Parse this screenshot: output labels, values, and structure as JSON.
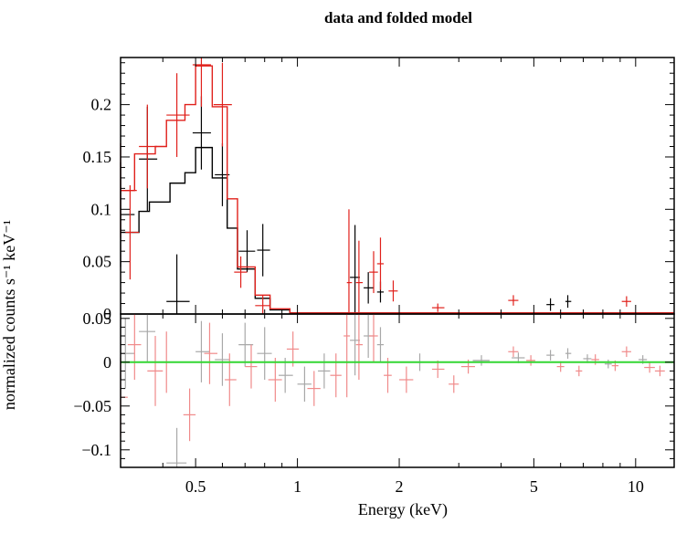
{
  "chart_data": [
    {
      "panel": "top",
      "type": "scatter",
      "title": "data and folded model",
      "xlabel": "Energy (keV)",
      "ylabel": "normalized counts s⁻¹ keV⁻¹",
      "xscale": "log",
      "xlim": [
        0.3,
        13
      ],
      "ylim": [
        0,
        0.245
      ],
      "grid": false,
      "xticks": [
        0.5,
        1,
        2,
        5,
        10
      ],
      "xtick_labels": [
        "0.5",
        "1",
        "2",
        "5",
        "10"
      ],
      "yticks": [
        0,
        0.05,
        0.1,
        0.15,
        0.2
      ],
      "ytick_labels": [
        "0",
        "0.05",
        "0.1",
        "0.15",
        "0.2"
      ],
      "series": [
        {
          "color": "#000000",
          "data": [
            {
              "x": 0.3,
              "x0": 0.3,
              "x1": 0.33,
              "y": 0.095,
              "yerr": 0.05
            },
            {
              "x": 0.36,
              "x0": 0.34,
              "x1": 0.385,
              "y": 0.148,
              "yerr": 0.05
            },
            {
              "x": 0.44,
              "x0": 0.41,
              "x1": 0.48,
              "y": 0.012,
              "yerr": 0.045
            },
            {
              "x": 0.52,
              "x0": 0.49,
              "x1": 0.555,
              "y": 0.173,
              "yerr": 0.035
            },
            {
              "x": 0.6,
              "x0": 0.57,
              "x1": 0.63,
              "y": 0.133,
              "yerr": 0.03
            },
            {
              "x": 0.71,
              "x0": 0.67,
              "x1": 0.75,
              "y": 0.06,
              "yerr": 0.02
            },
            {
              "x": 0.79,
              "x0": 0.76,
              "x1": 0.83,
              "y": 0.061,
              "yerr": 0.025
            },
            {
              "x": 1.48,
              "x0": 1.43,
              "x1": 1.53,
              "y": 0.035,
              "yerr": 0.05
            },
            {
              "x": 1.62,
              "x0": 1.57,
              "x1": 1.68,
              "y": 0.025,
              "yerr": 0.015
            },
            {
              "x": 1.76,
              "x0": 1.72,
              "x1": 1.8,
              "y": 0.021,
              "yerr": 0.01
            },
            {
              "x": 5.6,
              "x0": 5.45,
              "x1": 5.75,
              "y": 0.009,
              "yerr": 0.006
            },
            {
              "x": 6.3,
              "x0": 6.2,
              "x1": 6.45,
              "y": 0.012,
              "yerr": 0.006
            }
          ],
          "model_steps": [
            {
              "x0": 0.3,
              "x1": 0.34,
              "y": 0.078
            },
            {
              "x0": 0.34,
              "x1": 0.365,
              "y": 0.098
            },
            {
              "x0": 0.365,
              "x1": 0.42,
              "y": 0.107
            },
            {
              "x0": 0.42,
              "x1": 0.465,
              "y": 0.125
            },
            {
              "x0": 0.465,
              "x1": 0.5,
              "y": 0.135
            },
            {
              "x0": 0.5,
              "x1": 0.56,
              "y": 0.159
            },
            {
              "x0": 0.56,
              "x1": 0.62,
              "y": 0.13
            },
            {
              "x0": 0.62,
              "x1": 0.665,
              "y": 0.082
            },
            {
              "x0": 0.665,
              "x1": 0.75,
              "y": 0.043
            },
            {
              "x0": 0.75,
              "x1": 0.83,
              "y": 0.015
            },
            {
              "x0": 0.83,
              "x1": 0.95,
              "y": 0.004
            },
            {
              "x0": 0.95,
              "x1": 13,
              "y": 0.001
            }
          ]
        },
        {
          "color": "#e0201b",
          "data": [
            {
              "x": 0.3,
              "x0": 0.285,
              "x1": 0.335,
              "y": 0.118,
              "yerr": 0.045
            },
            {
              "x": 0.32,
              "x0": 0.31,
              "x1": 0.34,
              "y": 0.078,
              "yerr": 0.045
            },
            {
              "x": 0.36,
              "x0": 0.34,
              "x1": 0.385,
              "y": 0.16,
              "yerr": 0.04
            },
            {
              "x": 0.44,
              "x0": 0.41,
              "x1": 0.48,
              "y": 0.19,
              "yerr": 0.04
            },
            {
              "x": 0.52,
              "x0": 0.49,
              "x1": 0.555,
              "y": 0.238,
              "yerr": 0.04
            },
            {
              "x": 0.6,
              "x0": 0.565,
              "x1": 0.64,
              "y": 0.2,
              "yerr": 0.04
            },
            {
              "x": 0.68,
              "x0": 0.65,
              "x1": 0.71,
              "y": 0.04,
              "yerr": 0.015
            },
            {
              "x": 0.79,
              "x0": 0.75,
              "x1": 0.83,
              "y": 0.008,
              "yerr": 0.01
            },
            {
              "x": 1.42,
              "x0": 1.4,
              "x1": 1.45,
              "y": 0.03,
              "yerr": 0.07
            },
            {
              "x": 1.52,
              "x0": 1.49,
              "x1": 1.56,
              "y": 0.03,
              "yerr": 0.04
            },
            {
              "x": 1.68,
              "x0": 1.63,
              "x1": 1.73,
              "y": 0.04,
              "yerr": 0.02
            },
            {
              "x": 1.76,
              "x0": 1.72,
              "x1": 1.8,
              "y": 0.048,
              "yerr": 0.025
            },
            {
              "x": 1.92,
              "x0": 1.86,
              "x1": 1.98,
              "y": 0.022,
              "yerr": 0.01
            },
            {
              "x": 2.6,
              "x0": 2.5,
              "x1": 2.72,
              "y": 0.006,
              "yerr": 0.004
            },
            {
              "x": 4.35,
              "x0": 4.2,
              "x1": 4.5,
              "y": 0.013,
              "yerr": 0.005
            },
            {
              "x": 9.4,
              "x0": 9.1,
              "x1": 9.7,
              "y": 0.012,
              "yerr": 0.005
            }
          ],
          "model_steps": [
            {
              "x0": 0.3,
              "x1": 0.33,
              "y": 0.118
            },
            {
              "x0": 0.33,
              "x1": 0.38,
              "y": 0.153
            },
            {
              "x0": 0.38,
              "x1": 0.41,
              "y": 0.16
            },
            {
              "x0": 0.41,
              "x1": 0.465,
              "y": 0.185
            },
            {
              "x0": 0.465,
              "x1": 0.5,
              "y": 0.2
            },
            {
              "x0": 0.5,
              "x1": 0.56,
              "y": 0.237
            },
            {
              "x0": 0.56,
              "x1": 0.62,
              "y": 0.198
            },
            {
              "x0": 0.62,
              "x1": 0.665,
              "y": 0.11
            },
            {
              "x0": 0.665,
              "x1": 0.75,
              "y": 0.045
            },
            {
              "x0": 0.75,
              "x1": 0.83,
              "y": 0.018
            },
            {
              "x0": 0.83,
              "x1": 0.95,
              "y": 0.005
            },
            {
              "x0": 0.95,
              "x1": 13,
              "y": 0.001
            }
          ]
        }
      ]
    },
    {
      "panel": "bottom",
      "type": "scatter",
      "xlabel": "Energy (keV)",
      "ylabel": "normalized counts s⁻¹ keV⁻¹",
      "xscale": "log",
      "xlim": [
        0.3,
        13
      ],
      "ylim": [
        -0.12,
        0.055
      ],
      "grid": false,
      "yticks": [
        -0.1,
        -0.05,
        0,
        0.05
      ],
      "ytick_labels": [
        "−0.1",
        "−0.05",
        "0",
        "0.05"
      ],
      "reference_line": {
        "y": 0,
        "color": "#33d633"
      },
      "series": [
        {
          "color": "#a8a8a8",
          "data": [
            {
              "x": 0.31,
              "x0": 0.29,
              "x1": 0.33,
              "y": 0.01,
              "yerr": 0.04
            },
            {
              "x": 0.36,
              "x0": 0.34,
              "x1": 0.38,
              "y": 0.035,
              "yerr": 0.035
            },
            {
              "x": 0.44,
              "x0": 0.41,
              "x1": 0.47,
              "y": -0.115,
              "yerr": 0.04
            },
            {
              "x": 0.52,
              "x0": 0.5,
              "x1": 0.55,
              "y": 0.012,
              "yerr": 0.035
            },
            {
              "x": 0.6,
              "x0": 0.57,
              "x1": 0.63,
              "y": 0.003,
              "yerr": 0.03
            },
            {
              "x": 0.7,
              "x0": 0.67,
              "x1": 0.74,
              "y": 0.02,
              "yerr": 0.025
            },
            {
              "x": 0.8,
              "x0": 0.76,
              "x1": 0.84,
              "y": 0.01,
              "yerr": 0.03
            },
            {
              "x": 0.92,
              "x0": 0.88,
              "x1": 0.97,
              "y": -0.015,
              "yerr": 0.02
            },
            {
              "x": 1.05,
              "x0": 1.0,
              "x1": 1.1,
              "y": -0.025,
              "yerr": 0.02
            },
            {
              "x": 1.2,
              "x0": 1.15,
              "x1": 1.25,
              "y": -0.01,
              "yerr": 0.02
            },
            {
              "x": 1.48,
              "x0": 1.43,
              "x1": 1.53,
              "y": 0.025,
              "yerr": 0.04
            },
            {
              "x": 1.62,
              "x0": 1.57,
              "x1": 1.68,
              "y": 0.03,
              "yerr": 0.025
            },
            {
              "x": 1.76,
              "x0": 1.72,
              "x1": 1.8,
              "y": 0.02,
              "yerr": 0.02
            },
            {
              "x": 2.3,
              "x0": 2.2,
              "x1": 2.4,
              "y": 0.0,
              "yerr": 0.01
            },
            {
              "x": 3.5,
              "x0": 3.3,
              "x1": 3.7,
              "y": 0.002,
              "yerr": 0.006
            },
            {
              "x": 4.5,
              "x0": 4.3,
              "x1": 4.7,
              "y": 0.005,
              "yerr": 0.006
            },
            {
              "x": 5.6,
              "x0": 5.45,
              "x1": 5.75,
              "y": 0.008,
              "yerr": 0.006
            },
            {
              "x": 6.3,
              "x0": 6.2,
              "x1": 6.45,
              "y": 0.01,
              "yerr": 0.006
            },
            {
              "x": 7.2,
              "x0": 7.0,
              "x1": 7.4,
              "y": 0.004,
              "yerr": 0.005
            },
            {
              "x": 8.3,
              "x0": 8.1,
              "x1": 8.5,
              "y": -0.002,
              "yerr": 0.005
            },
            {
              "x": 10.5,
              "x0": 10.2,
              "x1": 10.8,
              "y": 0.003,
              "yerr": 0.005
            }
          ]
        },
        {
          "color": "#f08a8a",
          "data": [
            {
              "x": 0.3,
              "x0": 0.285,
              "x1": 0.315,
              "y": -0.04,
              "yerr": 0.045
            },
            {
              "x": 0.33,
              "x0": 0.315,
              "x1": 0.345,
              "y": 0.02,
              "yerr": 0.04
            },
            {
              "x": 0.38,
              "x0": 0.36,
              "x1": 0.4,
              "y": -0.01,
              "yerr": 0.04
            },
            {
              "x": 0.41,
              "x0": 0.39,
              "x1": 0.43,
              "y": 0.0,
              "yerr": 0.035
            },
            {
              "x": 0.48,
              "x0": 0.46,
              "x1": 0.5,
              "y": -0.06,
              "yerr": 0.03
            },
            {
              "x": 0.55,
              "x0": 0.53,
              "x1": 0.58,
              "y": 0.01,
              "yerr": 0.035
            },
            {
              "x": 0.63,
              "x0": 0.61,
              "x1": 0.66,
              "y": -0.02,
              "yerr": 0.03
            },
            {
              "x": 0.73,
              "x0": 0.7,
              "x1": 0.76,
              "y": -0.005,
              "yerr": 0.025
            },
            {
              "x": 0.86,
              "x0": 0.82,
              "x1": 0.9,
              "y": -0.02,
              "yerr": 0.025
            },
            {
              "x": 0.97,
              "x0": 0.93,
              "x1": 1.01,
              "y": 0.015,
              "yerr": 0.02
            },
            {
              "x": 1.12,
              "x0": 1.07,
              "x1": 1.17,
              "y": -0.03,
              "yerr": 0.02
            },
            {
              "x": 1.3,
              "x0": 1.25,
              "x1": 1.35,
              "y": -0.015,
              "yerr": 0.025
            },
            {
              "x": 1.4,
              "x0": 1.37,
              "x1": 1.43,
              "y": 0.03,
              "yerr": 0.07
            },
            {
              "x": 1.52,
              "x0": 1.49,
              "x1": 1.56,
              "y": 0.02,
              "yerr": 0.04
            },
            {
              "x": 1.68,
              "x0": 1.63,
              "x1": 1.73,
              "y": 0.03,
              "yerr": 0.03
            },
            {
              "x": 1.85,
              "x0": 1.8,
              "x1": 1.9,
              "y": -0.015,
              "yerr": 0.02
            },
            {
              "x": 2.1,
              "x0": 2.0,
              "x1": 2.2,
              "y": -0.02,
              "yerr": 0.015
            },
            {
              "x": 2.6,
              "x0": 2.5,
              "x1": 2.72,
              "y": -0.008,
              "yerr": 0.01
            },
            {
              "x": 2.9,
              "x0": 2.8,
              "x1": 3.0,
              "y": -0.025,
              "yerr": 0.01
            },
            {
              "x": 3.2,
              "x0": 3.05,
              "x1": 3.35,
              "y": -0.005,
              "yerr": 0.008
            },
            {
              "x": 4.35,
              "x0": 4.2,
              "x1": 4.5,
              "y": 0.012,
              "yerr": 0.006
            },
            {
              "x": 4.9,
              "x0": 4.75,
              "x1": 5.05,
              "y": 0.002,
              "yerr": 0.006
            },
            {
              "x": 6.0,
              "x0": 5.85,
              "x1": 6.15,
              "y": -0.005,
              "yerr": 0.006
            },
            {
              "x": 6.8,
              "x0": 6.65,
              "x1": 6.95,
              "y": -0.01,
              "yerr": 0.006
            },
            {
              "x": 7.6,
              "x0": 7.4,
              "x1": 7.8,
              "y": 0.003,
              "yerr": 0.006
            },
            {
              "x": 8.7,
              "x0": 8.5,
              "x1": 8.9,
              "y": -0.004,
              "yerr": 0.006
            },
            {
              "x": 9.4,
              "x0": 9.1,
              "x1": 9.7,
              "y": 0.012,
              "yerr": 0.006
            },
            {
              "x": 11.0,
              "x0": 10.6,
              "x1": 11.4,
              "y": -0.006,
              "yerr": 0.006
            },
            {
              "x": 11.8,
              "x0": 11.4,
              "x1": 12.2,
              "y": -0.01,
              "yerr": 0.006
            }
          ]
        }
      ]
    }
  ]
}
